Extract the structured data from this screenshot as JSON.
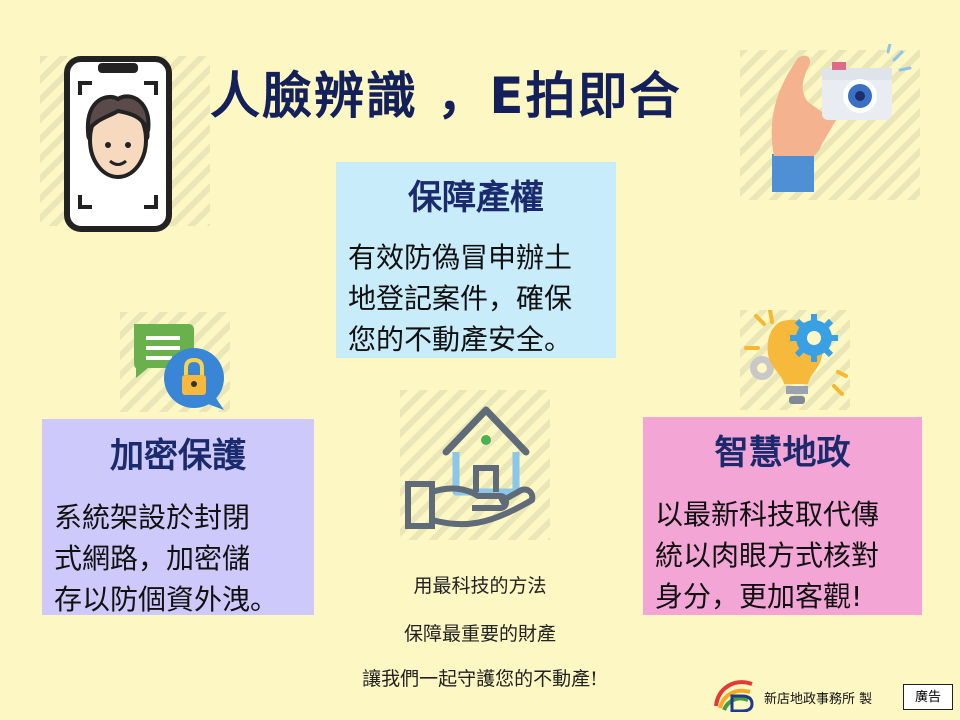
{
  "title": "人臉辨識 ，E拍即合",
  "cards": {
    "center": {
      "heading": "保障產權",
      "lines": [
        "有效防偽冒申辦土",
        "地登記案件，確保",
        "您的不動產安全。"
      ]
    },
    "left": {
      "heading": "加密保護",
      "lines": [
        "系統架設於封閉",
        "式網路，加密儲",
        "存以防個資外洩。"
      ]
    },
    "right": {
      "heading": "智慧地政",
      "lines": [
        "以最新科技取代傳",
        "統以肉眼方式核對",
        "身分，更加客觀!"
      ]
    }
  },
  "slogan": [
    "用最科技的方法",
    "保障最重要的財產",
    "讓我們一起守護您的不動產!"
  ],
  "footer": {
    "maker": "新店地政事務所 製",
    "ad": "廣告"
  },
  "icons": [
    "phone-face-icon",
    "camera-hand-icon",
    "chat-lock-icon",
    "bulb-gear-icon",
    "hand-house-icon",
    "office-logo-icon"
  ],
  "colors": {
    "background": "#fdf7c3",
    "title": "#13205a",
    "center_card": "#c9ecfb",
    "left_card": "#cdcafb",
    "right_card": "#f3a6d6"
  }
}
